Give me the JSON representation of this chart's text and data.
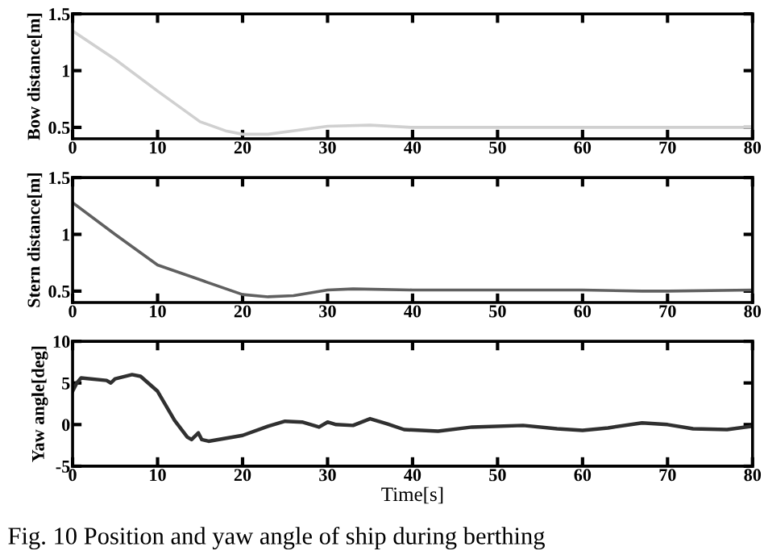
{
  "chart_data": [
    {
      "type": "line",
      "ylabel": "Bow distance[m]",
      "xlim": [
        0,
        80
      ],
      "xticks": [
        0,
        10,
        20,
        30,
        40,
        50,
        60,
        70,
        80
      ],
      "ylim": [
        0.4,
        1.5
      ],
      "yticks": [
        0.5,
        1,
        1.5
      ],
      "grid": false,
      "legend": false,
      "series": [
        {
          "color": "#d0d0d0",
          "x": [
            0,
            5,
            10,
            15,
            18,
            20,
            23,
            27,
            30,
            35,
            40,
            50,
            60,
            70,
            80
          ],
          "values": [
            1.35,
            1.1,
            0.82,
            0.55,
            0.47,
            0.44,
            0.44,
            0.48,
            0.51,
            0.52,
            0.5,
            0.5,
            0.5,
            0.5,
            0.5
          ]
        }
      ]
    },
    {
      "type": "line",
      "ylabel": "Stern distance[m]",
      "xlim": [
        0,
        80
      ],
      "xticks": [
        0,
        10,
        20,
        30,
        40,
        50,
        60,
        70,
        80
      ],
      "ylim": [
        0.4,
        1.5
      ],
      "yticks": [
        0.5,
        1,
        1.5
      ],
      "grid": false,
      "legend": false,
      "series": [
        {
          "color": "#606060",
          "x": [
            0,
            5,
            10,
            15,
            20,
            23,
            26,
            30,
            33,
            40,
            50,
            60,
            67,
            70,
            80
          ],
          "values": [
            1.28,
            1.0,
            0.73,
            0.6,
            0.47,
            0.45,
            0.46,
            0.51,
            0.52,
            0.51,
            0.51,
            0.51,
            0.5,
            0.5,
            0.51
          ]
        }
      ]
    },
    {
      "type": "line",
      "ylabel": "Yaw angle[deg]",
      "xlabel": "Time[s]",
      "xlim": [
        0,
        80
      ],
      "xticks": [
        0,
        10,
        20,
        30,
        40,
        50,
        60,
        70,
        80
      ],
      "ylim": [
        -5,
        10
      ],
      "yticks": [
        -5,
        0,
        5,
        10
      ],
      "grid": false,
      "legend": false,
      "annotations": [
        "Fig. 10 Position and yaw angle of ship during berthing"
      ],
      "series": [
        {
          "color": "#303030",
          "x": [
            0,
            0.5,
            1,
            4,
            4.5,
            5,
            7,
            8,
            10,
            12,
            13.5,
            14,
            14.8,
            15.2,
            16,
            20,
            23,
            25,
            27,
            29,
            30,
            31,
            33,
            35,
            37,
            39,
            43,
            47,
            53,
            57,
            60,
            63,
            67,
            70,
            73,
            77,
            80
          ],
          "values": [
            4,
            5,
            5.6,
            5.3,
            5.0,
            5.5,
            6.0,
            5.8,
            4,
            0.5,
            -1.5,
            -1.8,
            -1.0,
            -1.8,
            -2.0,
            -1.3,
            -0.2,
            0.4,
            0.3,
            -0.3,
            0.3,
            0.0,
            -0.1,
            0.7,
            0.1,
            -0.6,
            -0.8,
            -0.3,
            -0.1,
            -0.5,
            -0.7,
            -0.4,
            0.2,
            0.0,
            -0.5,
            -0.6,
            -0.2
          ]
        }
      ]
    }
  ]
}
